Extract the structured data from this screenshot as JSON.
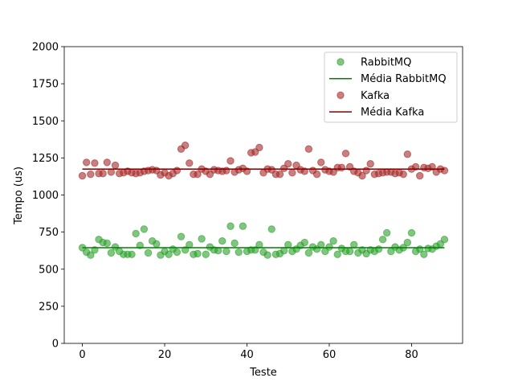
{
  "chart_data": {
    "type": "scatter",
    "xlabel": "Teste",
    "ylabel": "Tempo (us)",
    "xlim": [
      -4.4,
      92.4
    ],
    "ylim": [
      0,
      2000
    ],
    "x_ticks": [
      0,
      20,
      40,
      60,
      80
    ],
    "y_ticks": [
      0,
      250,
      500,
      750,
      1000,
      1250,
      1500,
      1750,
      2000
    ],
    "grid": false,
    "legend_position": "top-right",
    "series": [
      {
        "name": "RabbitMQ",
        "kind": "scatter",
        "color": "#2ca02c",
        "x": [
          0,
          1,
          2,
          3,
          4,
          5,
          6,
          7,
          8,
          9,
          10,
          11,
          12,
          13,
          14,
          15,
          16,
          17,
          18,
          19,
          20,
          21,
          22,
          23,
          24,
          25,
          26,
          27,
          28,
          29,
          30,
          31,
          32,
          33,
          34,
          35,
          36,
          37,
          38,
          39,
          40,
          41,
          42,
          43,
          44,
          45,
          46,
          47,
          48,
          49,
          50,
          51,
          52,
          53,
          54,
          55,
          56,
          57,
          58,
          59,
          60,
          61,
          62,
          63,
          64,
          65,
          66,
          67,
          68,
          69,
          70,
          71,
          72,
          73,
          74,
          75,
          76,
          77,
          78,
          79,
          80,
          81,
          82,
          83,
          84,
          85,
          86,
          87,
          88
        ],
        "y": [
          645,
          615,
          595,
          630,
          700,
          680,
          675,
          610,
          650,
          620,
          600,
          600,
          600,
          740,
          660,
          770,
          610,
          690,
          670,
          595,
          620,
          600,
          635,
          615,
          720,
          630,
          665,
          600,
          605,
          705,
          600,
          650,
          630,
          625,
          690,
          620,
          790,
          675,
          615,
          790,
          620,
          630,
          630,
          665,
          615,
          595,
          770,
          600,
          605,
          625,
          665,
          620,
          635,
          660,
          680,
          610,
          650,
          635,
          665,
          620,
          650,
          690,
          600,
          640,
          620,
          620,
          665,
          610,
          630,
          605,
          630,
          620,
          635,
          700,
          745,
          620,
          650,
          630,
          645,
          680,
          745,
          620,
          635,
          600,
          640,
          635,
          655,
          670,
          700
        ]
      },
      {
        "name": "Média RabbitMQ",
        "kind": "line",
        "color": "#008000",
        "x": [
          0,
          88
        ],
        "y": [
          645,
          645
        ]
      },
      {
        "name": "Kafka",
        "kind": "scatter",
        "color": "#a52a2a",
        "x": [
          0,
          1,
          2,
          3,
          4,
          5,
          6,
          7,
          8,
          9,
          10,
          11,
          12,
          13,
          14,
          15,
          16,
          17,
          18,
          19,
          20,
          21,
          22,
          23,
          24,
          25,
          26,
          27,
          28,
          29,
          30,
          31,
          32,
          33,
          34,
          35,
          36,
          37,
          38,
          39,
          40,
          41,
          42,
          43,
          44,
          45,
          46,
          47,
          48,
          49,
          50,
          51,
          52,
          53,
          54,
          55,
          56,
          57,
          58,
          59,
          60,
          61,
          62,
          63,
          64,
          65,
          66,
          67,
          68,
          69,
          70,
          71,
          72,
          73,
          74,
          75,
          76,
          77,
          78,
          79,
          80,
          81,
          82,
          83,
          84,
          85,
          86,
          87,
          88
        ],
        "y": [
          1130,
          1220,
          1140,
          1215,
          1145,
          1145,
          1220,
          1155,
          1200,
          1145,
          1150,
          1160,
          1150,
          1145,
          1150,
          1160,
          1165,
          1170,
          1165,
          1135,
          1150,
          1130,
          1145,
          1165,
          1310,
          1335,
          1215,
          1140,
          1140,
          1175,
          1160,
          1140,
          1170,
          1165,
          1160,
          1165,
          1230,
          1155,
          1170,
          1180,
          1160,
          1285,
          1290,
          1320,
          1150,
          1175,
          1170,
          1140,
          1140,
          1180,
          1210,
          1150,
          1200,
          1170,
          1160,
          1310,
          1165,
          1140,
          1220,
          1170,
          1160,
          1155,
          1185,
          1185,
          1280,
          1190,
          1160,
          1150,
          1130,
          1165,
          1210,
          1140,
          1145,
          1150,
          1155,
          1155,
          1145,
          1150,
          1140,
          1275,
          1175,
          1190,
          1130,
          1185,
          1180,
          1190,
          1155,
          1175,
          1165
        ]
      },
      {
        "name": "Média Kafka",
        "kind": "line",
        "color": "#800000",
        "x": [
          0,
          88
        ],
        "y": [
          1175,
          1175
        ]
      }
    ]
  }
}
